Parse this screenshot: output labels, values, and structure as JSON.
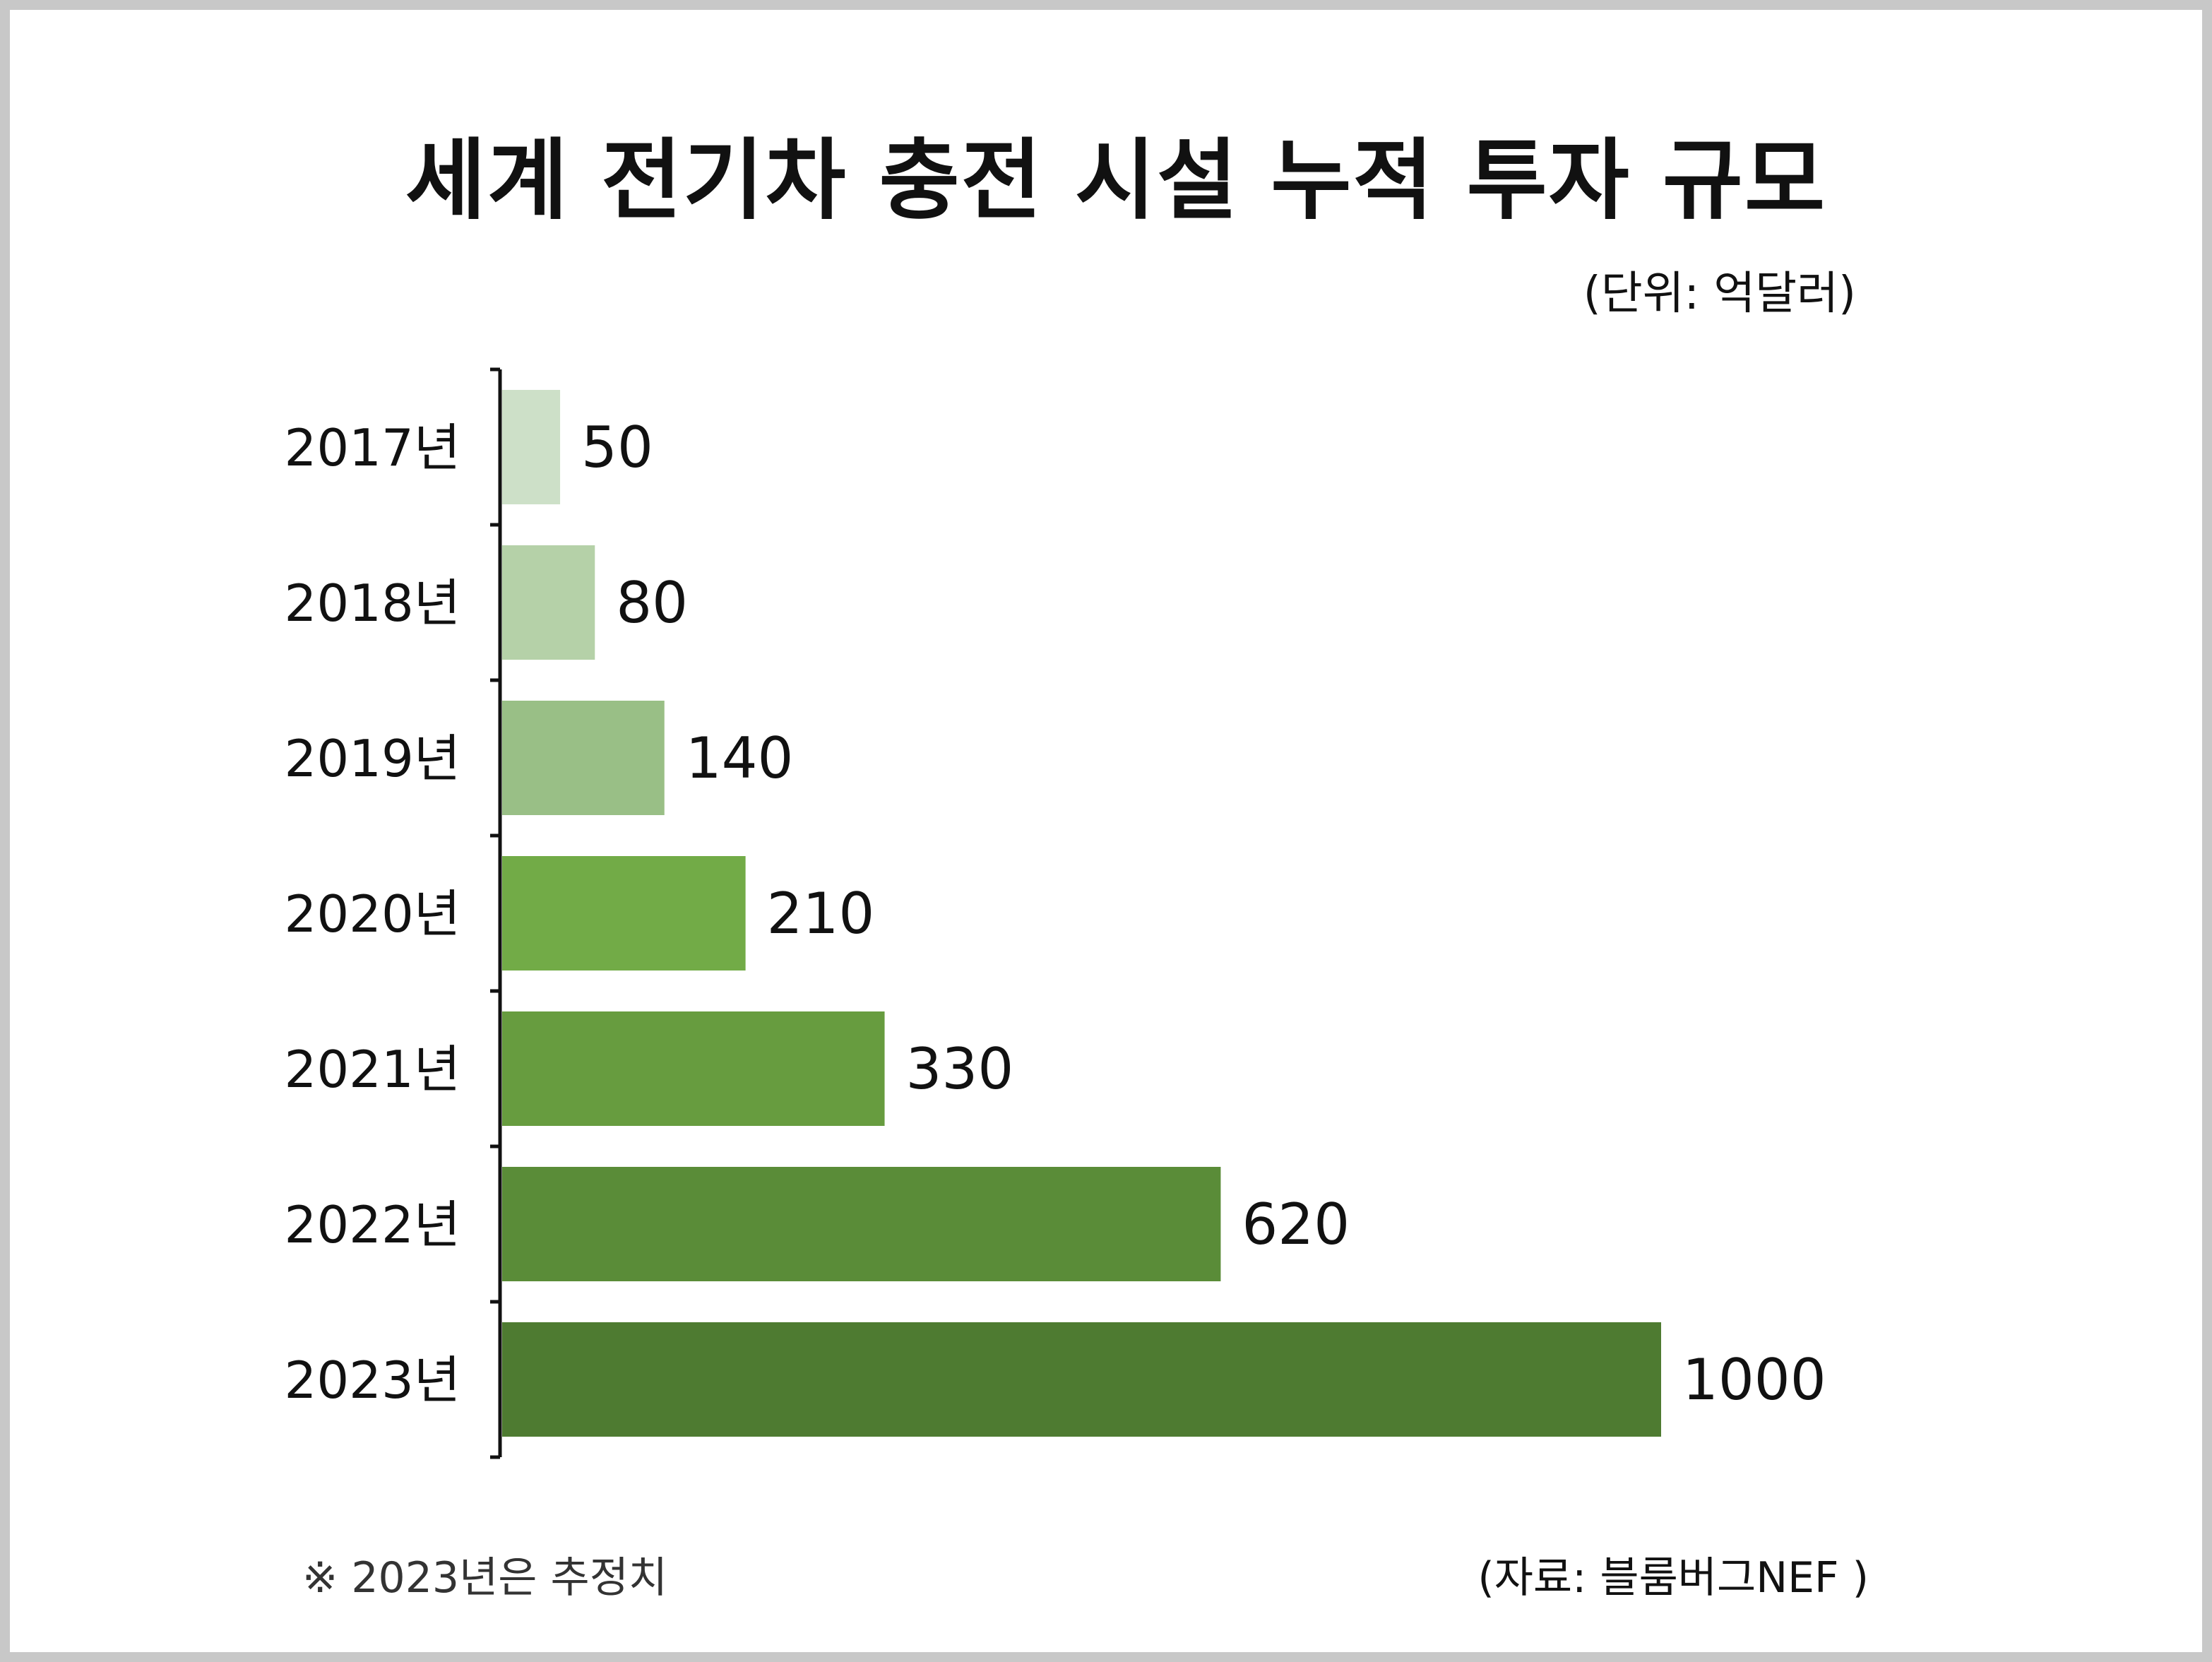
{
  "title": "세계 전기차 충전 시설 누적 투자 규모",
  "unit_label": "(단위: 억달러)",
  "footnote": "※ 2023년은 추정치",
  "source": "(자료: 블룸버그NEF )",
  "chart_data": {
    "type": "bar",
    "orientation": "horizontal",
    "categories": [
      "2017년",
      "2018년",
      "2019년",
      "2020년",
      "2021년",
      "2022년",
      "2023년"
    ],
    "values": [
      50,
      80,
      140,
      210,
      330,
      620,
      1000
    ],
    "value_labels": [
      "50",
      "80",
      "140",
      "210",
      "330",
      "620",
      "1000"
    ],
    "xlim": [
      0,
      1000
    ],
    "grid": false,
    "legend": "none",
    "bar_colors": [
      "#cde0c8",
      "#b5d1a8",
      "#99bf86",
      "#72ab47",
      "#679c3f",
      "#5a8c38",
      "#4e7b31"
    ]
  }
}
